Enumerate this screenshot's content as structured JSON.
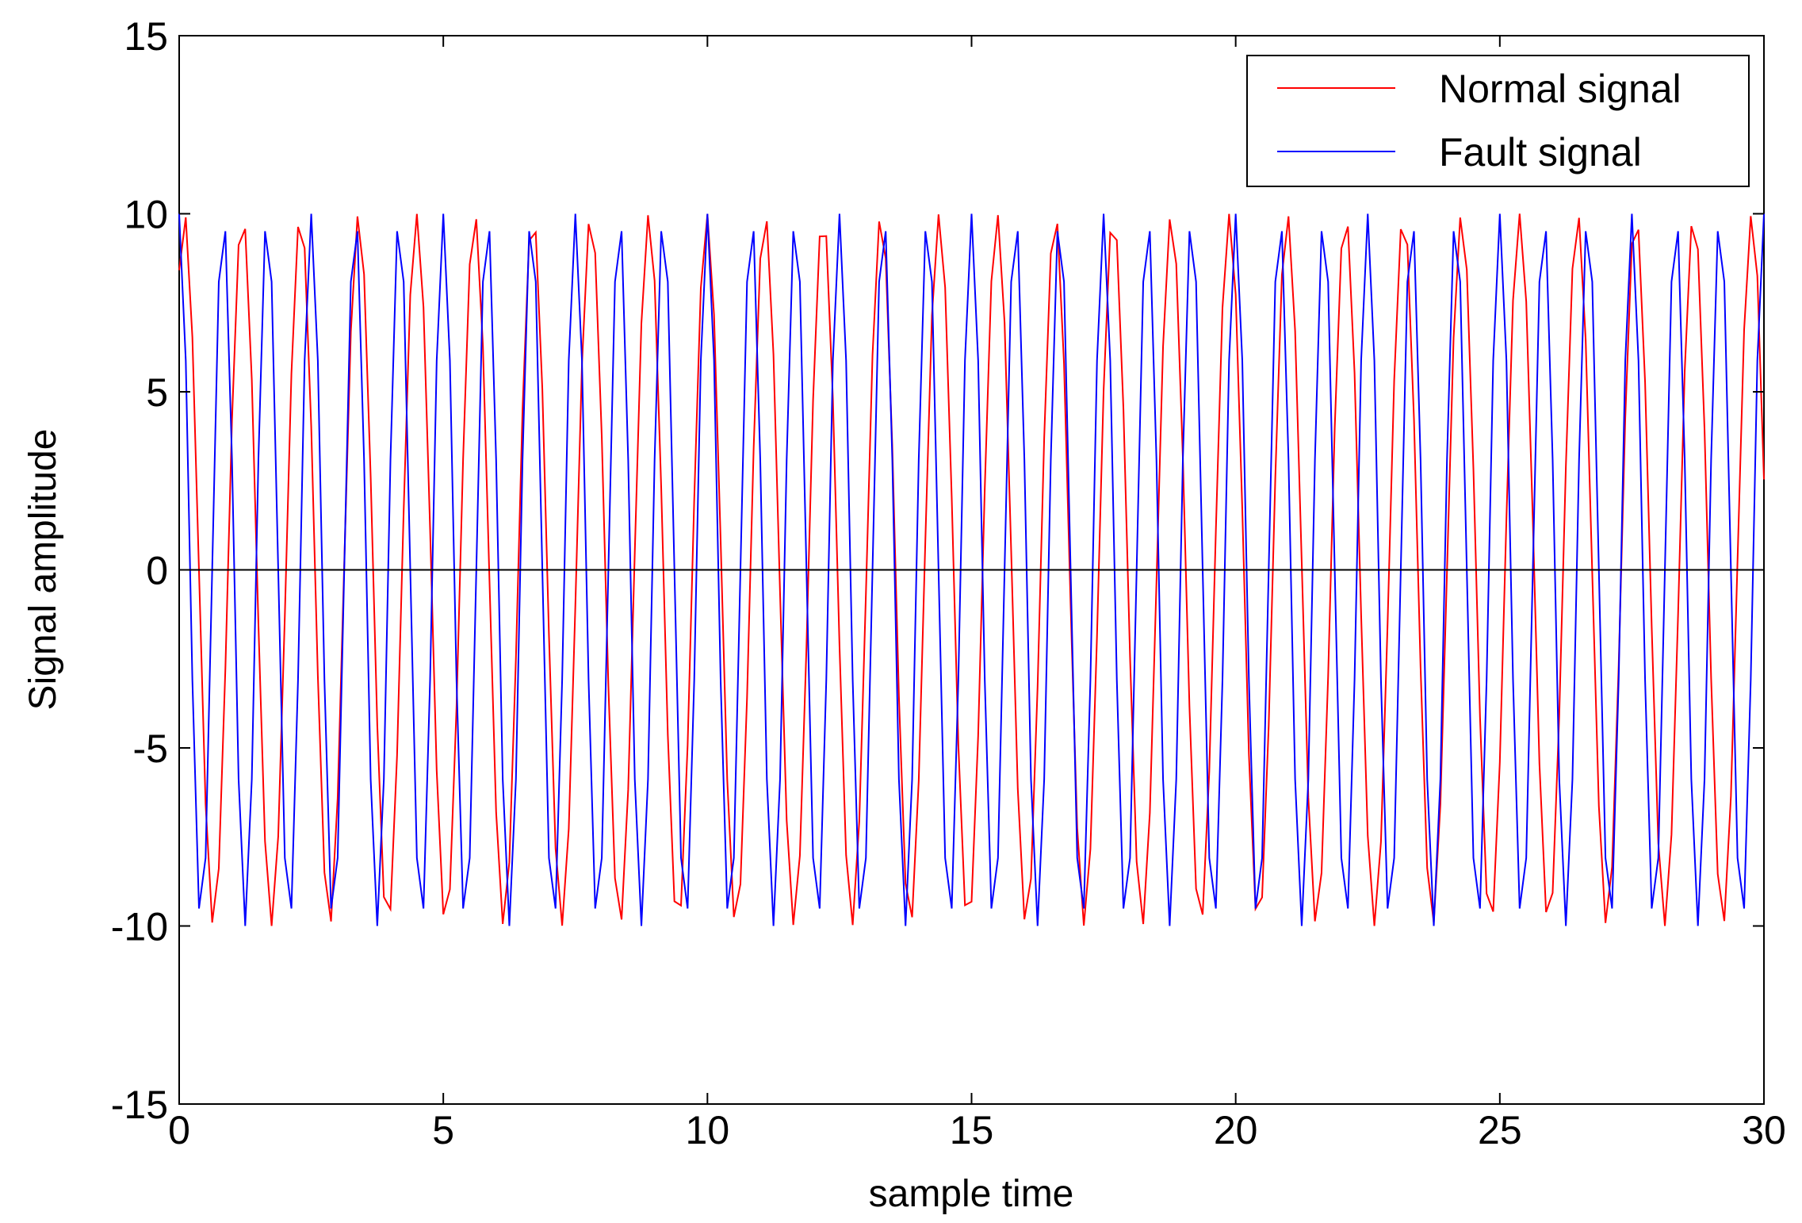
{
  "chart_data": {
    "type": "line",
    "title": "",
    "xlabel": "sample time",
    "ylabel": "Signal amplitude",
    "xlim": [
      0,
      30
    ],
    "ylim": [
      -15,
      15
    ],
    "xticks": [
      0,
      5,
      10,
      15,
      20,
      25,
      30
    ],
    "yticks": [
      15,
      10,
      5,
      0,
      -5,
      -10,
      -15
    ],
    "xtick_labels": [
      "0",
      "5",
      "10",
      "15",
      "20",
      "25",
      "30"
    ],
    "ytick_labels": [
      "15",
      "10",
      "5",
      "0",
      "-5",
      "-10",
      "-15"
    ],
    "grid": false,
    "legend_position": "top-right",
    "zero_line": true,
    "sampling": {
      "start": 0,
      "end": 30,
      "step": 0.125
    },
    "series": [
      {
        "name": "Normal signal",
        "color": "#ff0000",
        "amplitude": 10,
        "frequency": 0.91,
        "phase": 1.0,
        "description_values": "sinusoid oscillating between about -10 and +10"
      },
      {
        "name": "Fault signal",
        "color": "#0000ff",
        "amplitude": 10,
        "frequency": 1.2,
        "phase": 1.5708,
        "description_values": "sinusoid oscillating between about -10 and +10"
      }
    ]
  }
}
